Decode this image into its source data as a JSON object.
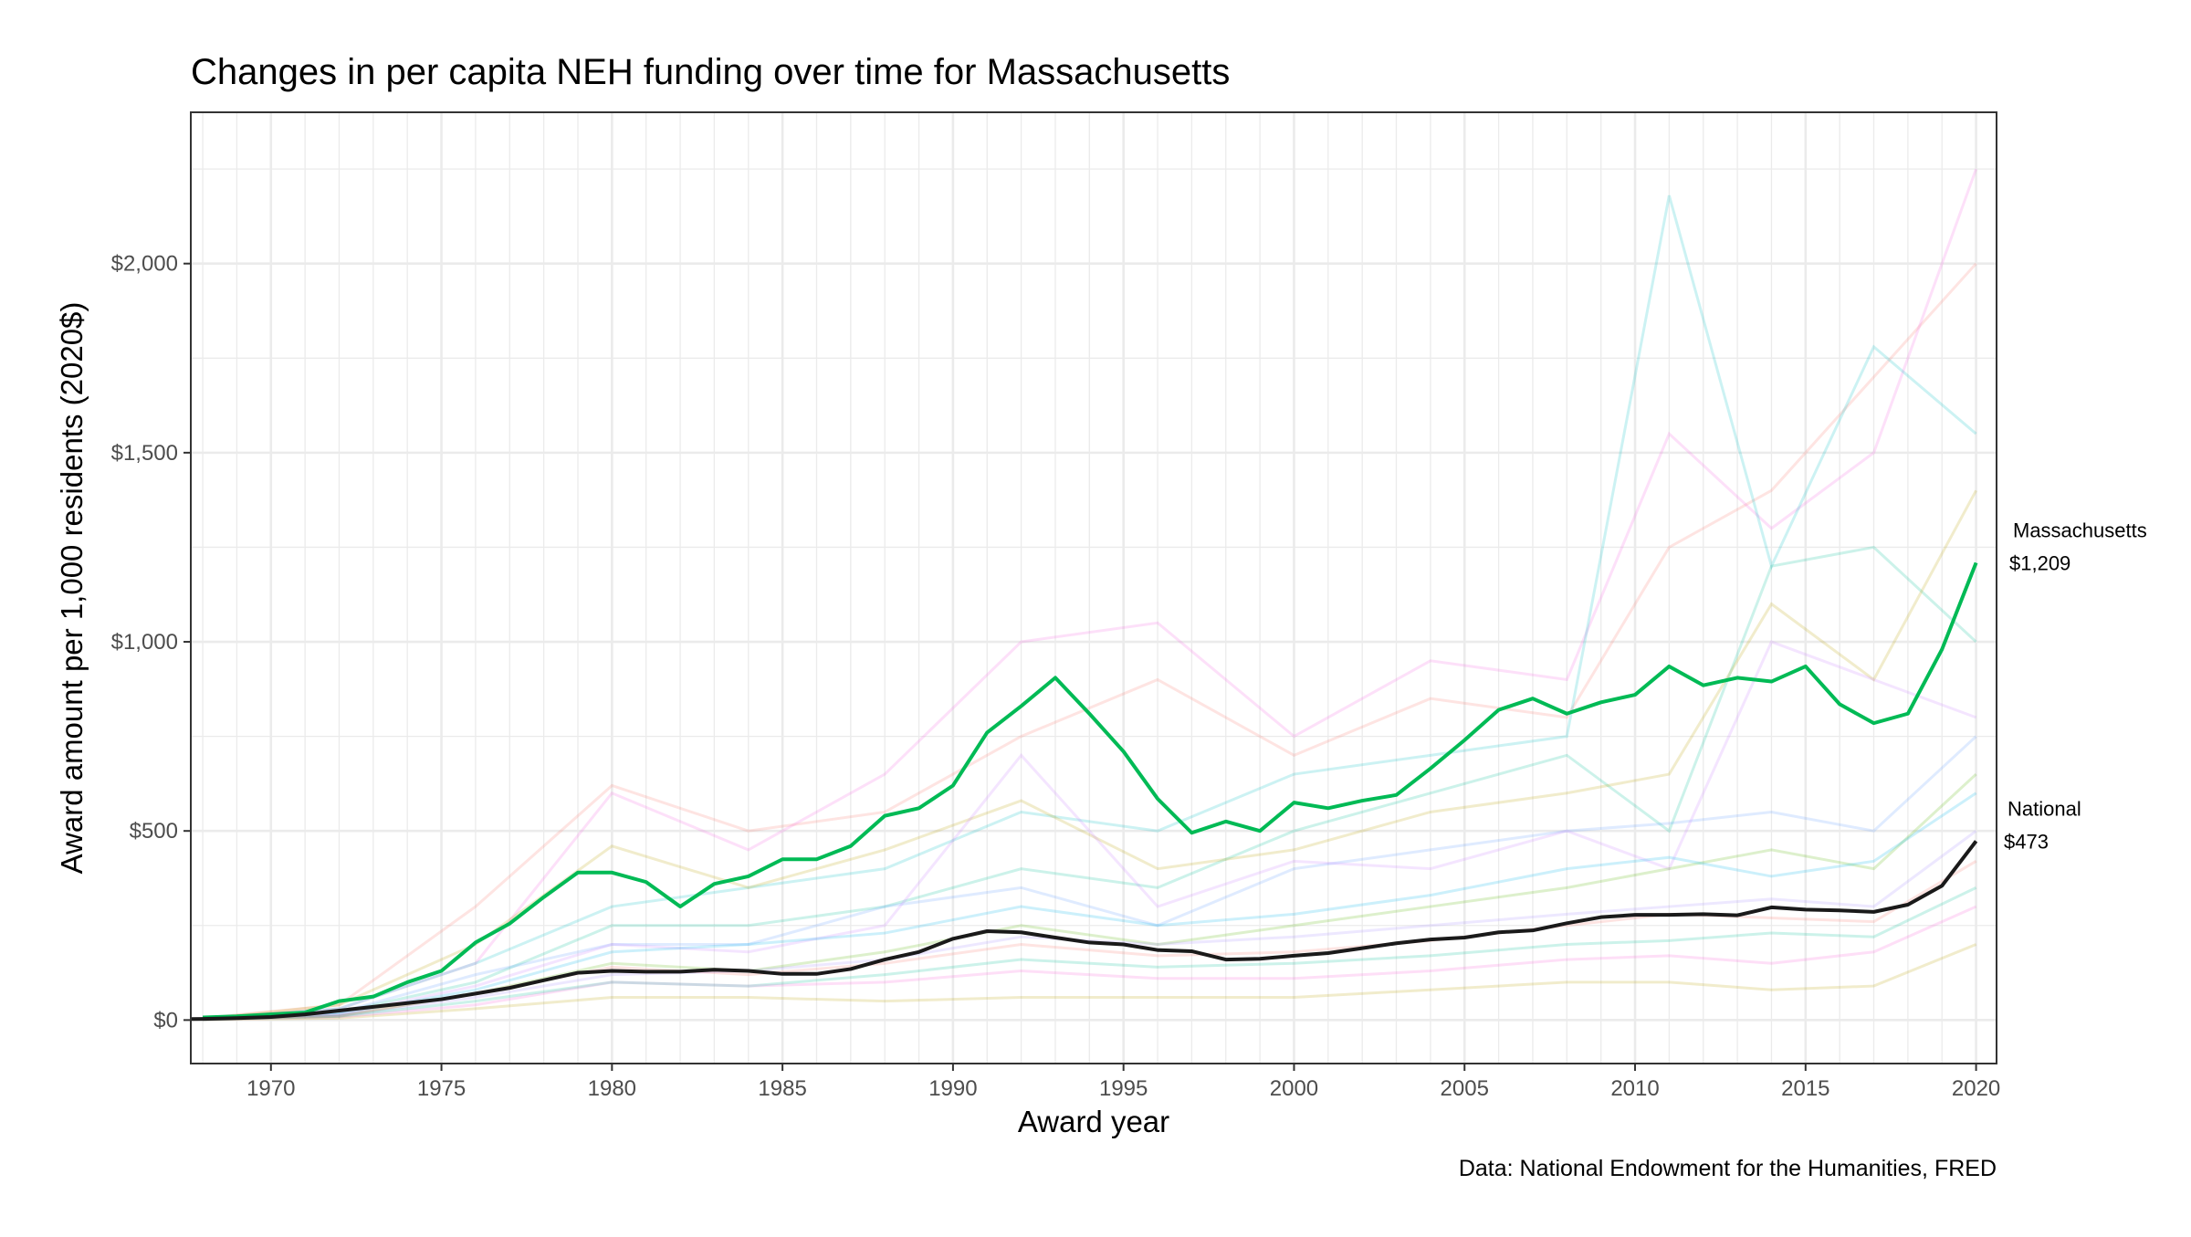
{
  "chart_data": {
    "type": "line",
    "title": "Changes in per capita NEH funding over time for Massachusetts",
    "xlabel": "Award year",
    "ylabel": "Award amount per 1,000 residents (2020$)",
    "caption": "Data: National Endowment for the Humanities, FRED",
    "xlim": [
      1967.65,
      2020.6
    ],
    "ylim": [
      -115,
      2400
    ],
    "x_ticks": [
      1970,
      1975,
      1980,
      1985,
      1990,
      1995,
      2000,
      2005,
      2010,
      2015,
      2020
    ],
    "x_tick_labels": [
      "1970",
      "1975",
      "1980",
      "1985",
      "1990",
      "1995",
      "2000",
      "2005",
      "2010",
      "2015",
      "2020"
    ],
    "y_ticks": [
      0,
      500,
      1000,
      1500,
      2000
    ],
    "y_tick_labels": [
      "$0",
      "$500",
      "$1,000",
      "$1,500",
      "$2,000"
    ],
    "grid": true,
    "highlight_series": [
      {
        "name": "Massachusetts",
        "end_label": "$1,209",
        "color": "#00BA55",
        "x": [
          1968,
          1969,
          1970,
          1971,
          1972,
          1973,
          1974,
          1975,
          1976,
          1977,
          1978,
          1979,
          1980,
          1981,
          1982,
          1983,
          1984,
          1985,
          1986,
          1987,
          1988,
          1989,
          1990,
          1991,
          1992,
          1993,
          1994,
          1995,
          1996,
          1997,
          1998,
          1999,
          2000,
          2001,
          2002,
          2003,
          2004,
          2005,
          2006,
          2007,
          2008,
          2009,
          2010,
          2011,
          2012,
          2013,
          2014,
          2015,
          2016,
          2017,
          2018,
          2019,
          2020
        ],
        "values": [
          7,
          10,
          15,
          20,
          50,
          62,
          100,
          130,
          205,
          255,
          325,
          390,
          390,
          365,
          300,
          360,
          380,
          425,
          425,
          460,
          540,
          560,
          620,
          760,
          830,
          905,
          810,
          710,
          585,
          495,
          525,
          500,
          575,
          560,
          580,
          595,
          665,
          740,
          820,
          850,
          810,
          840,
          860,
          935,
          885,
          905,
          895,
          935,
          835,
          785,
          810,
          980,
          1209
        ]
      },
      {
        "name": "National",
        "end_label": "$473",
        "color": "#1a1a1a",
        "x": [
          1967,
          1968,
          1969,
          1970,
          1971,
          1972,
          1973,
          1974,
          1975,
          1976,
          1977,
          1978,
          1979,
          1980,
          1981,
          1982,
          1983,
          1984,
          1985,
          1986,
          1987,
          1988,
          1989,
          1990,
          1991,
          1992,
          1993,
          1994,
          1995,
          1996,
          1997,
          1998,
          1999,
          2000,
          2001,
          2002,
          2003,
          2004,
          2005,
          2006,
          2007,
          2008,
          2009,
          2010,
          2011,
          2012,
          2013,
          2014,
          2015,
          2016,
          2017,
          2018,
          2019,
          2020
        ],
        "values": [
          2,
          3,
          5,
          8,
          15,
          25,
          35,
          45,
          55,
          70,
          85,
          105,
          125,
          130,
          128,
          128,
          133,
          130,
          122,
          122,
          135,
          160,
          180,
          215,
          235,
          232,
          218,
          205,
          200,
          185,
          182,
          160,
          162,
          170,
          177,
          190,
          203,
          213,
          218,
          232,
          237,
          256,
          272,
          278,
          278,
          280,
          277,
          298,
          292,
          290,
          286,
          305,
          355,
          473
        ]
      }
    ],
    "background_series": {
      "x": [
        1968,
        1972,
        1976,
        1980,
        1984,
        1988,
        1992,
        1996,
        2000,
        2004,
        2008,
        2011,
        2014,
        2017,
        2020
      ],
      "series": [
        {
          "color": "#F8766D",
          "values": [
            5,
            40,
            300,
            620,
            500,
            550,
            750,
            900,
            700,
            850,
            800,
            1250,
            1400,
            1700,
            2000
          ]
        },
        {
          "color": "#F564E3",
          "values": [
            5,
            30,
            150,
            600,
            450,
            650,
            1000,
            1050,
            750,
            950,
            900,
            1550,
            1300,
            1500,
            2250
          ]
        },
        {
          "color": "#00BFC4",
          "values": [
            3,
            30,
            150,
            300,
            350,
            400,
            550,
            500,
            650,
            700,
            750,
            2180,
            1200,
            1780,
            1550
          ]
        },
        {
          "color": "#00C094",
          "values": [
            2,
            20,
            100,
            250,
            250,
            300,
            400,
            350,
            500,
            600,
            700,
            500,
            1200,
            1250,
            1000
          ]
        },
        {
          "color": "#B79F00",
          "values": [
            3,
            40,
            200,
            460,
            350,
            450,
            580,
            400,
            450,
            550,
            600,
            650,
            1100,
            900,
            1400
          ]
        },
        {
          "color": "#619CFF",
          "values": [
            2,
            20,
            120,
            200,
            200,
            300,
            350,
            250,
            400,
            450,
            500,
            520,
            550,
            500,
            750
          ]
        },
        {
          "color": "#C77CFF",
          "values": [
            2,
            15,
            90,
            200,
            180,
            250,
            700,
            300,
            420,
            400,
            500,
            400,
            1000,
            900,
            800
          ]
        },
        {
          "color": "#53B400",
          "values": [
            2,
            10,
            70,
            150,
            130,
            180,
            250,
            200,
            250,
            300,
            350,
            400,
            450,
            400,
            650
          ]
        },
        {
          "color": "#B79F00",
          "values": [
            1,
            5,
            30,
            60,
            60,
            50,
            60,
            60,
            60,
            80,
            100,
            100,
            80,
            90,
            200
          ]
        },
        {
          "color": "#FB61D7",
          "values": [
            1,
            8,
            40,
            100,
            90,
            100,
            130,
            110,
            110,
            130,
            160,
            170,
            150,
            180,
            300
          ]
        },
        {
          "color": "#00B6EB",
          "values": [
            2,
            15,
            80,
            180,
            200,
            230,
            300,
            250,
            280,
            330,
            400,
            430,
            380,
            420,
            600
          ]
        },
        {
          "color": "#A58AFF",
          "values": [
            2,
            12,
            60,
            120,
            130,
            160,
            220,
            200,
            220,
            250,
            280,
            300,
            320,
            300,
            500
          ]
        },
        {
          "color": "#00C094",
          "values": [
            1,
            10,
            50,
            100,
            90,
            120,
            160,
            140,
            150,
            170,
            200,
            210,
            230,
            220,
            350
          ]
        },
        {
          "color": "#F8766D",
          "values": [
            2,
            12,
            70,
            140,
            120,
            150,
            200,
            170,
            180,
            210,
            250,
            280,
            270,
            260,
            420
          ]
        }
      ]
    }
  }
}
